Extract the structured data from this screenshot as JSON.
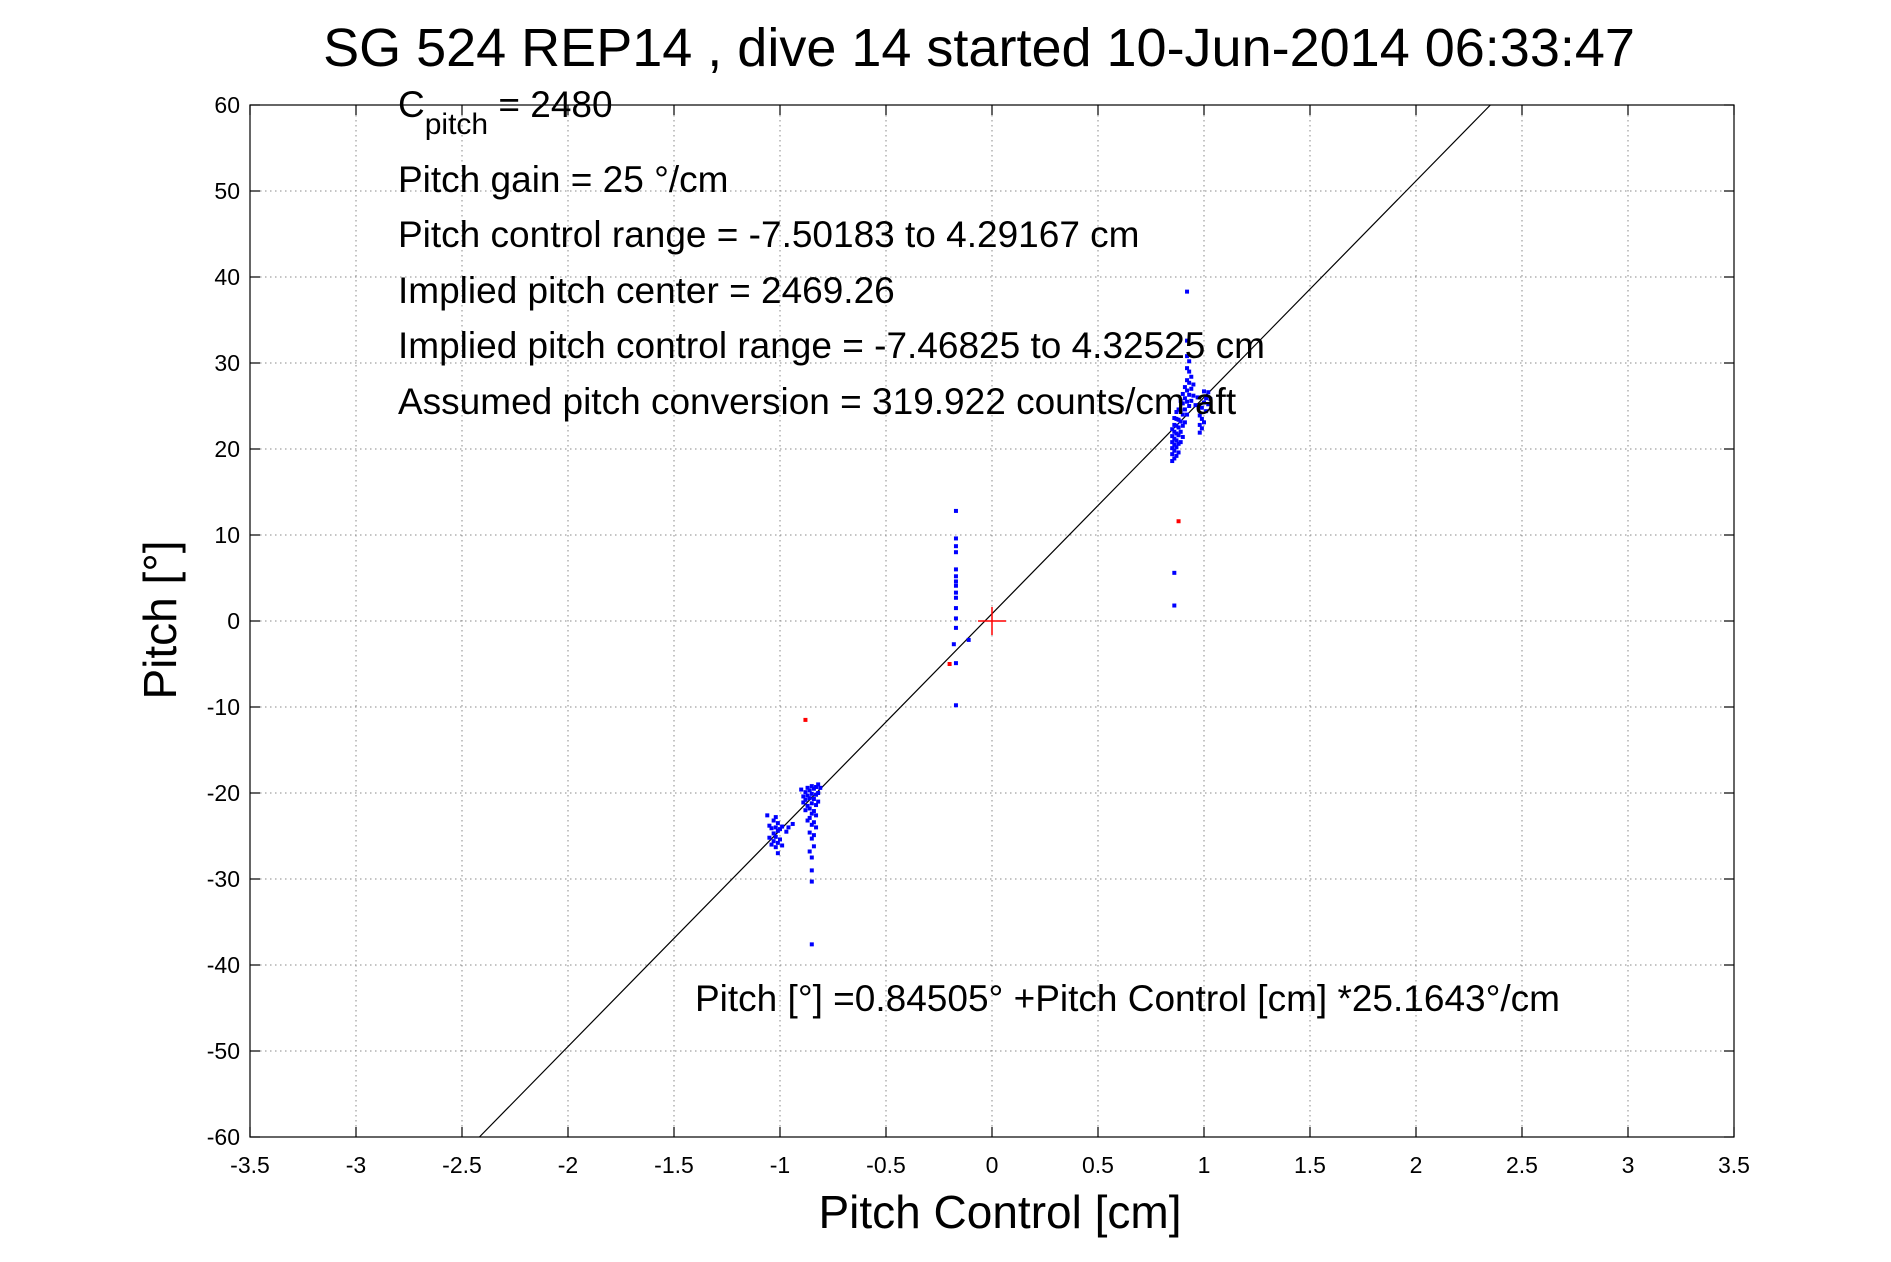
{
  "chart_data": {
    "type": "scatter",
    "title": "SG 524   REP14  , dive 14 started 10-Jun-2014 06:33:47",
    "xlabel": "Pitch Control [cm]",
    "ylabel": "Pitch [°]",
    "xlim": [
      -3.5,
      3.5
    ],
    "ylim": [
      -60,
      60
    ],
    "xticks": [
      -3.5,
      -3,
      -2.5,
      -2,
      -1.5,
      -1,
      -0.5,
      0,
      0.5,
      1,
      1.5,
      2,
      2.5,
      3,
      3.5
    ],
    "yticks": [
      -60,
      -50,
      -40,
      -30,
      -20,
      -10,
      0,
      10,
      20,
      30,
      40,
      50,
      60
    ],
    "xtick_labels": [
      "-3.5",
      "-3",
      "-2.5",
      "-2",
      "-1.5",
      "-1",
      "-0.5",
      "0",
      "0.5",
      "1",
      "1.5",
      "2",
      "2.5",
      "3",
      "3.5"
    ],
    "ytick_labels": [
      "-60",
      "-50",
      "-40",
      "-30",
      "-20",
      "-10",
      "0",
      "10",
      "20",
      "30",
      "40",
      "50",
      "60"
    ],
    "grid": true,
    "annotations": {
      "c_pitch_main": "C",
      "c_pitch_sub": "pitch",
      "c_pitch_rest": " = 2480",
      "lines": [
        "Pitch gain = 25 °/cm",
        "Pitch control range = -7.50183 to 4.29167 cm",
        "Implied pitch center = 2469.26",
        "Implied pitch control range = -7.46825 to 4.32525 cm",
        "Assumed pitch conversion = 319.922 counts/cm aft"
      ],
      "fit_equation": "Pitch [°] =0.84505° +Pitch Control [cm] *25.1643°/cm"
    },
    "fit_line": {
      "intercept": 0.84505,
      "slope": 25.1643,
      "color": "#000000"
    },
    "center_marker": {
      "x": 0,
      "y": 0,
      "color": "#ff0000"
    },
    "series": [
      {
        "color": "#0000ff",
        "points": [
          [
            -1.06,
            -22.6
          ],
          [
            -1.05,
            -23.8
          ],
          [
            -1.05,
            -25.2
          ],
          [
            -1.04,
            -24.1
          ],
          [
            -1.04,
            -26.0
          ],
          [
            -1.03,
            -23.2
          ],
          [
            -1.03,
            -24.7
          ],
          [
            -1.03,
            -25.6
          ],
          [
            -1.02,
            -22.8
          ],
          [
            -1.02,
            -24.0
          ],
          [
            -1.02,
            -25.1
          ],
          [
            -1.02,
            -26.3
          ],
          [
            -1.01,
            -23.5
          ],
          [
            -1.01,
            -24.4
          ],
          [
            -1.01,
            -25.8
          ],
          [
            -1.01,
            -27.0
          ],
          [
            -1.0,
            -24.2
          ],
          [
            -1.0,
            -25.4
          ],
          [
            -0.99,
            -23.9
          ],
          [
            -0.99,
            -26.1
          ],
          [
            -0.97,
            -24.5
          ],
          [
            -0.96,
            -24.0
          ],
          [
            -0.94,
            -23.6
          ],
          [
            -0.9,
            -19.6
          ],
          [
            -0.89,
            -20.4
          ],
          [
            -0.89,
            -21.1
          ],
          [
            -0.88,
            -19.9
          ],
          [
            -0.88,
            -20.8
          ],
          [
            -0.88,
            -22.0
          ],
          [
            -0.87,
            -19.4
          ],
          [
            -0.87,
            -20.3
          ],
          [
            -0.87,
            -21.5
          ],
          [
            -0.87,
            -23.2
          ],
          [
            -0.86,
            -19.7
          ],
          [
            -0.86,
            -20.6
          ],
          [
            -0.86,
            -21.8
          ],
          [
            -0.86,
            -22.9
          ],
          [
            -0.86,
            -24.6
          ],
          [
            -0.86,
            -26.8
          ],
          [
            -0.85,
            -19.2
          ],
          [
            -0.85,
            -20.1
          ],
          [
            -0.85,
            -21.2
          ],
          [
            -0.85,
            -22.4
          ],
          [
            -0.85,
            -23.7
          ],
          [
            -0.85,
            -25.3
          ],
          [
            -0.85,
            -27.5
          ],
          [
            -0.85,
            -29.0
          ],
          [
            -0.85,
            -30.3
          ],
          [
            -0.84,
            -19.5
          ],
          [
            -0.84,
            -20.7
          ],
          [
            -0.84,
            -22.1
          ],
          [
            -0.84,
            -23.4
          ],
          [
            -0.84,
            -24.9
          ],
          [
            -0.84,
            -26.2
          ],
          [
            -0.83,
            -19.3
          ],
          [
            -0.83,
            -20.2
          ],
          [
            -0.83,
            -21.4
          ],
          [
            -0.83,
            -22.6
          ],
          [
            -0.83,
            -24.0
          ],
          [
            -0.82,
            -19.0
          ],
          [
            -0.82,
            -20.0
          ],
          [
            -0.82,
            -21.0
          ],
          [
            -0.81,
            -19.4
          ],
          [
            -0.85,
            -37.6
          ],
          [
            -0.17,
            12.8
          ],
          [
            -0.17,
            9.6
          ],
          [
            -0.17,
            8.7
          ],
          [
            -0.17,
            8.0
          ],
          [
            -0.17,
            6.0
          ],
          [
            -0.17,
            5.2
          ],
          [
            -0.17,
            4.6
          ],
          [
            -0.17,
            4.1
          ],
          [
            -0.17,
            3.3
          ],
          [
            -0.17,
            2.7
          ],
          [
            -0.17,
            1.5
          ],
          [
            -0.17,
            0.3
          ],
          [
            -0.17,
            -0.8
          ],
          [
            -0.18,
            -2.7
          ],
          [
            -0.17,
            -4.9
          ],
          [
            -0.17,
            -9.8
          ],
          [
            -0.11,
            -2.2
          ],
          [
            0.86,
            5.6
          ],
          [
            0.86,
            1.8
          ],
          [
            0.85,
            18.6
          ],
          [
            0.85,
            19.4
          ],
          [
            0.85,
            20.1
          ],
          [
            0.85,
            20.8
          ],
          [
            0.85,
            21.5
          ],
          [
            0.85,
            22.3
          ],
          [
            0.86,
            18.9
          ],
          [
            0.86,
            19.8
          ],
          [
            0.86,
            20.5
          ],
          [
            0.86,
            21.2
          ],
          [
            0.86,
            22.0
          ],
          [
            0.86,
            22.8
          ],
          [
            0.86,
            23.6
          ],
          [
            0.87,
            19.2
          ],
          [
            0.87,
            20.2
          ],
          [
            0.87,
            21.0
          ],
          [
            0.87,
            21.8
          ],
          [
            0.87,
            22.7
          ],
          [
            0.87,
            23.5
          ],
          [
            0.87,
            24.3
          ],
          [
            0.88,
            19.6
          ],
          [
            0.88,
            20.6
          ],
          [
            0.88,
            21.6
          ],
          [
            0.88,
            22.5
          ],
          [
            0.88,
            23.4
          ],
          [
            0.88,
            24.6
          ],
          [
            0.89,
            20.8
          ],
          [
            0.89,
            22.0
          ],
          [
            0.89,
            23.2
          ],
          [
            0.89,
            24.5
          ],
          [
            0.89,
            25.6
          ],
          [
            0.9,
            21.4
          ],
          [
            0.9,
            22.7
          ],
          [
            0.9,
            24.0
          ],
          [
            0.9,
            25.3
          ],
          [
            0.9,
            26.4
          ],
          [
            0.91,
            23.1
          ],
          [
            0.91,
            24.6
          ],
          [
            0.91,
            25.9
          ],
          [
            0.91,
            27.2
          ],
          [
            0.92,
            24.0
          ],
          [
            0.92,
            25.5
          ],
          [
            0.92,
            26.8
          ],
          [
            0.92,
            28.0
          ],
          [
            0.92,
            29.4
          ],
          [
            0.92,
            30.8
          ],
          [
            0.92,
            32.6
          ],
          [
            0.92,
            38.3
          ],
          [
            0.93,
            25.0
          ],
          [
            0.93,
            26.3
          ],
          [
            0.93,
            27.7
          ],
          [
            0.93,
            29.0
          ],
          [
            0.93,
            30.2
          ],
          [
            0.94,
            25.6
          ],
          [
            0.94,
            27.0
          ],
          [
            0.94,
            28.4
          ],
          [
            0.95,
            26.2
          ],
          [
            0.95,
            27.5
          ],
          [
            0.96,
            25.1
          ],
          [
            0.97,
            26.0
          ],
          [
            0.98,
            21.9
          ],
          [
            0.98,
            22.8
          ],
          [
            0.98,
            23.9
          ],
          [
            0.99,
            22.4
          ],
          [
            0.99,
            23.5
          ],
          [
            0.99,
            24.8
          ],
          [
            1.0,
            23.1
          ],
          [
            1.0,
            25.4
          ],
          [
            1.0,
            26.7
          ],
          [
            1.01,
            24.4
          ],
          [
            1.01,
            25.9
          ],
          [
            1.02,
            25.2
          ],
          [
            1.02,
            26.6
          ],
          [
            1.03,
            25.8
          ]
        ]
      },
      {
        "color": "#ff0000",
        "points": [
          [
            -0.88,
            -11.5
          ],
          [
            -0.2,
            -5.0
          ],
          [
            0.88,
            11.6
          ]
        ]
      }
    ]
  }
}
